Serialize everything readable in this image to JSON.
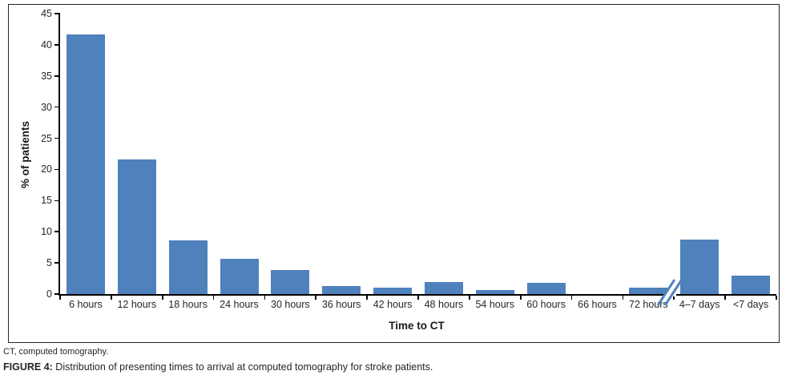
{
  "figure": {
    "abbrev_note": "CT, computed tomography.",
    "caption_label": "FIGURE 4:",
    "caption_text": " Distribution of presenting times to arrival at computed tomography for stroke patients."
  },
  "chart_data": {
    "type": "bar",
    "title": "",
    "xlabel": "Time to CT",
    "ylabel": "% of patients",
    "categories": [
      "6 hours",
      "12 hours",
      "18 hours",
      "24 hours",
      "30 hours",
      "36 hours",
      "42 hours",
      "48 hours",
      "54 hours",
      "60 hours",
      "66 hours",
      "72 hours",
      "4–7 days",
      "<7 days"
    ],
    "values": [
      41.6,
      21.6,
      8.6,
      5.6,
      3.9,
      1.3,
      1.0,
      1.9,
      0.6,
      1.8,
      0,
      1.0,
      8.7,
      3.0
    ],
    "ylim": [
      0,
      45
    ],
    "yticks": [
      0,
      5,
      10,
      15,
      20,
      25,
      30,
      35,
      40,
      45
    ],
    "grid": false,
    "legend": null,
    "bar_color": "#4f81bd",
    "axis_color": "#000000",
    "text_color": "#262626",
    "axis_break": {
      "after_category": "72 hours",
      "before_category": "4–7 days",
      "symbol": "//"
    }
  }
}
